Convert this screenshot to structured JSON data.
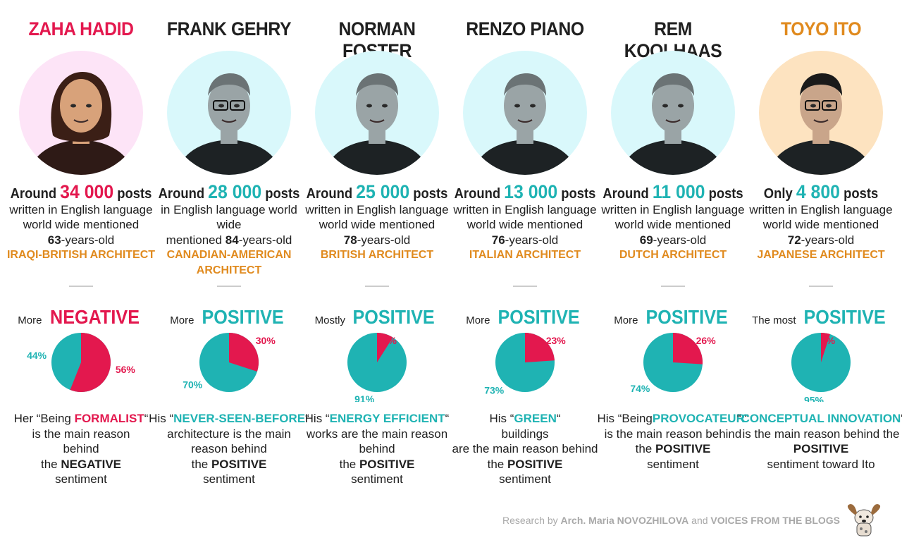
{
  "colors": {
    "negative": "#e3184e",
    "positive": "#1fb3b3",
    "nationality": "#e08a1e",
    "text": "#1f1f1f",
    "pink_bg": "#fde4f7",
    "cyan_bg": "#d9f8fb",
    "peach_bg": "#fde3c0"
  },
  "architects": [
    {
      "name": "ZAHA HADID",
      "name_color": "#e3184e",
      "bg": "#fde4f7",
      "posts_prefix": "Around",
      "posts": "34 000",
      "posts_suffix": "posts",
      "posts_color": "#e3184e",
      "desc1": "written in English language",
      "desc2": "world wide mentioned",
      "age": "63",
      "age_suffix": "-years-old",
      "nationality": "IRAQI-BRITISH ARCHITECT",
      "sent_prefix": "More",
      "sent_word": "NEGATIVE",
      "sent_color": "#e3184e",
      "reason": [
        "Her “Being ",
        "FORMALIST",
        "“",
        "is the main reason",
        "behind",
        "the ",
        "NEGATIVE",
        "sentiment"
      ],
      "reason_key_color": "#e3184e"
    },
    {
      "name": "FRANK GEHRY",
      "name_color": "#1f1f1f",
      "bg": "#d9f8fb",
      "posts_prefix": "Around",
      "posts": "28 000",
      "posts_suffix": "posts",
      "posts_color": "#1fb3b3",
      "desc1": "in English language world wide",
      "desc2": "",
      "age_prefix": "mentioned ",
      "age": "84",
      "age_suffix": "-years-old",
      "nationality": "CANADIAN-AMERICAN ARCHITECT",
      "sent_prefix": "More",
      "sent_word": "POSITIVE",
      "sent_color": "#1fb3b3",
      "reason": [
        "His “",
        "NEVER-SEEN-BEFORE",
        "“",
        "architecture is the main",
        "reason behind",
        "the ",
        "POSITIVE",
        "sentiment"
      ],
      "reason_key_color": "#1fb3b3"
    },
    {
      "name": "NORMAN FOSTER",
      "name_color": "#1f1f1f",
      "bg": "#d9f8fb",
      "posts_prefix": "Around",
      "posts": "25 000",
      "posts_suffix": "posts",
      "posts_color": "#1fb3b3",
      "desc1": "written in English language",
      "desc2": "world wide mentioned",
      "age": "78",
      "age_suffix": "-years-old",
      "nationality": "BRITISH ARCHITECT",
      "sent_prefix": "Mostly",
      "sent_word": "POSITIVE",
      "sent_color": "#1fb3b3",
      "reason": [
        "His “",
        "ENERGY EFFICIENT",
        "“",
        "works are the main reason",
        "behind",
        "the ",
        "POSITIVE",
        "sentiment"
      ],
      "reason_key_color": "#1fb3b3"
    },
    {
      "name": "RENZO PIANO",
      "name_color": "#1f1f1f",
      "bg": "#d9f8fb",
      "posts_prefix": "Around",
      "posts": "13 000",
      "posts_suffix": "posts",
      "posts_color": "#1fb3b3",
      "desc1": "written in English language",
      "desc2": "world wide mentioned",
      "age": "76",
      "age_suffix": "-years-old",
      "nationality": "ITALIAN ARCHITECT",
      "sent_prefix": "More",
      "sent_word": "POSITIVE",
      "sent_color": "#1fb3b3",
      "reason": [
        "His “",
        "GREEN",
        "“",
        "buildings",
        "are the main reason behind",
        "the ",
        "POSITIVE",
        "sentiment"
      ],
      "reason_key_color": "#1fb3b3"
    },
    {
      "name": "REM KOOLHAAS",
      "name_color": "#1f1f1f",
      "bg": "#d9f8fb",
      "posts_prefix": "Around",
      "posts": "11 000",
      "posts_suffix": "posts",
      "posts_color": "#1fb3b3",
      "desc1": "written in English language",
      "desc2": "world wide mentioned",
      "age": "69",
      "age_suffix": "-years-old",
      "nationality": "DUTCH ARCHITECT",
      "sent_prefix": "More",
      "sent_word": "POSITIVE",
      "sent_color": "#1fb3b3",
      "reason": [
        "His “Being",
        "PROVOCATEUR",
        "“",
        "is the main reason behind",
        "",
        "the ",
        "POSITIVE",
        "sentiment"
      ],
      "reason_key_color": "#1fb3b3"
    },
    {
      "name": "TOYO ITO",
      "name_color": "#e08a1e",
      "bg": "#fde3c0",
      "posts_prefix": "Only",
      "posts": "4 800",
      "posts_suffix": "posts",
      "posts_color": "#1fb3b3",
      "desc1": "written in English language",
      "desc2": "world wide mentioned",
      "age": "72",
      "age_suffix": "-years-old",
      "nationality": "JAPANESE ARCHITECT",
      "sent_prefix": "The most",
      "sent_word": "POSITIVE",
      "sent_color": "#1fb3b3",
      "reason": [
        "“",
        "CONCEPTUAL INNOVATION",
        "“",
        "is the main reason behind the",
        "",
        "",
        "POSITIVE",
        "sentiment toward Ito"
      ],
      "reason_key_color": "#1fb3b3"
    }
  ],
  "chart_data": [
    {
      "type": "pie",
      "categories": [
        "Negative",
        "Positive"
      ],
      "values": [
        56,
        44
      ],
      "labels": [
        "56%",
        "44%"
      ]
    },
    {
      "type": "pie",
      "categories": [
        "Negative",
        "Positive"
      ],
      "values": [
        30,
        70
      ],
      "labels": [
        "30%",
        "70%"
      ]
    },
    {
      "type": "pie",
      "categories": [
        "Negative",
        "Positive"
      ],
      "values": [
        9,
        91
      ],
      "labels": [
        "9%",
        "91%"
      ]
    },
    {
      "type": "pie",
      "categories": [
        "Negative",
        "Positive"
      ],
      "values": [
        23,
        73
      ],
      "labels": [
        "23%",
        "73%"
      ]
    },
    {
      "type": "pie",
      "categories": [
        "Negative",
        "Positive"
      ],
      "values": [
        26,
        74
      ],
      "labels": [
        "26%",
        "74%"
      ]
    },
    {
      "type": "pie",
      "categories": [
        "Negative",
        "Positive"
      ],
      "values": [
        5,
        95
      ],
      "labels": [
        "5%",
        "95%"
      ]
    }
  ],
  "footer": {
    "prefix": "Research by ",
    "author": "Arch. Maria NOVOZHILOVA",
    "middle": " and ",
    "org": "VOICES FROM THE BLOGS"
  }
}
